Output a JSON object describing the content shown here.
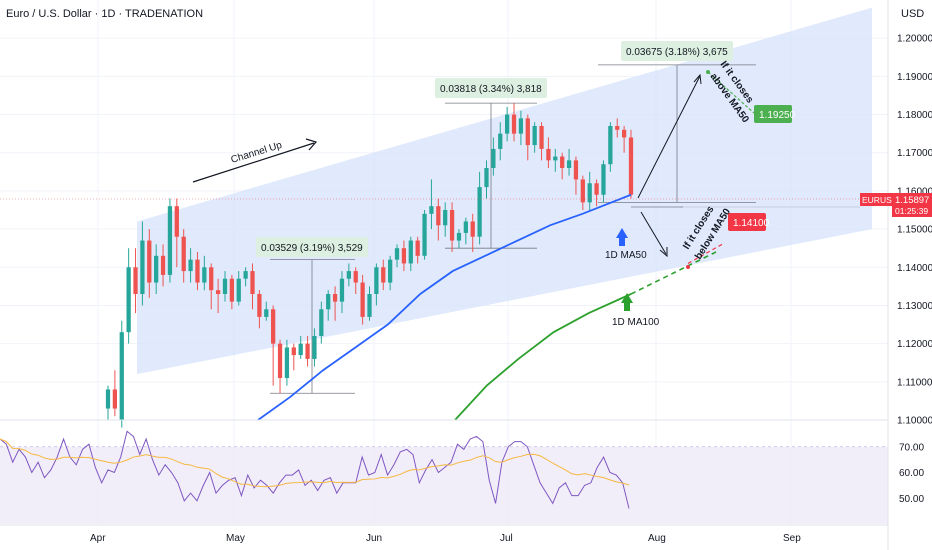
{
  "header": {
    "title": "Euro / U.S. Dollar · 1D · TRADENATION",
    "currency": "USD"
  },
  "colors": {
    "up": "#26a69a",
    "down": "#ef5350",
    "ma50": "#2962ff",
    "ma100": "#2ca02c",
    "channel": "#d6e3fb",
    "rsi": "#7e57c2",
    "rsi_ma": "#f5b841",
    "rsi_band": "#ede7f6",
    "badge_green": "#4caf50",
    "badge_red": "#f23645",
    "measure_box": "#dcefe0"
  },
  "chart_data": {
    "type": "candlestick",
    "symbol": "EURUSD",
    "price_axis": {
      "range": [
        1.1,
        1.21
      ],
      "ticks": [
        "1.20000",
        "1.19000",
        "1.18000",
        "1.17000",
        "1.16000",
        "1.15000",
        "1.14000",
        "1.13000",
        "1.12000",
        "1.11000",
        "1.10000"
      ]
    },
    "time_axis": {
      "labels": [
        "Apr",
        "May",
        "Jun",
        "Jul",
        "Aug",
        "Sep"
      ]
    },
    "last_price": {
      "label": "EURUSD",
      "value": "1.15897",
      "countdown": "01:25:39"
    },
    "candles": [
      [
        1.103,
        1.108,
        1.1,
        1.109
      ],
      [
        1.108,
        1.103,
        1.101,
        1.113
      ],
      [
        1.1,
        1.123,
        1.098,
        1.126
      ],
      [
        1.123,
        1.14,
        1.12,
        1.145
      ],
      [
        1.14,
        1.133,
        1.128,
        1.145
      ],
      [
        1.133,
        1.147,
        1.13,
        1.152
      ],
      [
        1.147,
        1.136,
        1.132,
        1.15
      ],
      [
        1.136,
        1.143,
        1.133,
        1.146
      ],
      [
        1.143,
        1.138,
        1.135,
        1.146
      ],
      [
        1.138,
        1.156,
        1.136,
        1.158
      ],
      [
        1.156,
        1.148,
        1.14,
        1.158
      ],
      [
        1.148,
        1.139,
        1.136,
        1.15
      ],
      [
        1.139,
        1.142,
        1.136,
        1.145
      ],
      [
        1.142,
        1.136,
        1.134,
        1.144
      ],
      [
        1.136,
        1.14,
        1.134,
        1.143
      ],
      [
        1.14,
        1.134,
        1.129,
        1.141
      ],
      [
        1.134,
        1.133,
        1.128,
        1.137
      ],
      [
        1.133,
        1.137,
        1.131,
        1.139
      ],
      [
        1.137,
        1.131,
        1.129,
        1.138
      ],
      [
        1.131,
        1.137,
        1.13,
        1.139
      ],
      [
        1.137,
        1.139,
        1.135,
        1.14
      ],
      [
        1.139,
        1.133,
        1.129,
        1.141
      ],
      [
        1.133,
        1.127,
        1.124,
        1.134
      ],
      [
        1.127,
        1.129,
        1.126,
        1.131
      ],
      [
        1.129,
        1.12,
        1.109,
        1.13
      ],
      [
        1.12,
        1.111,
        1.107,
        1.121
      ],
      [
        1.111,
        1.119,
        1.109,
        1.121
      ],
      [
        1.119,
        1.117,
        1.113,
        1.12
      ],
      [
        1.117,
        1.12,
        1.116,
        1.122
      ],
      [
        1.12,
        1.116,
        1.114,
        1.122
      ],
      [
        1.116,
        1.122,
        1.114,
        1.124
      ],
      [
        1.122,
        1.129,
        1.12,
        1.131
      ],
      [
        1.129,
        1.133,
        1.126,
        1.134
      ],
      [
        1.133,
        1.131,
        1.126,
        1.135
      ],
      [
        1.131,
        1.137,
        1.128,
        1.139
      ],
      [
        1.137,
        1.139,
        1.135,
        1.141
      ],
      [
        1.139,
        1.136,
        1.133,
        1.14
      ],
      [
        1.136,
        1.127,
        1.125,
        1.138
      ],
      [
        1.127,
        1.133,
        1.126,
        1.135
      ],
      [
        1.133,
        1.14,
        1.13,
        1.141
      ],
      [
        1.14,
        1.136,
        1.134,
        1.142
      ],
      [
        1.136,
        1.142,
        1.134,
        1.143
      ],
      [
        1.142,
        1.145,
        1.14,
        1.146
      ],
      [
        1.145,
        1.141,
        1.139,
        1.147
      ],
      [
        1.141,
        1.147,
        1.139,
        1.148
      ],
      [
        1.147,
        1.143,
        1.141,
        1.148
      ],
      [
        1.143,
        1.154,
        1.142,
        1.155
      ],
      [
        1.154,
        1.156,
        1.15,
        1.163
      ],
      [
        1.156,
        1.151,
        1.147,
        1.158
      ],
      [
        1.151,
        1.155,
        1.148,
        1.157
      ],
      [
        1.155,
        1.147,
        1.144,
        1.157
      ],
      [
        1.147,
        1.149,
        1.145,
        1.15
      ],
      [
        1.149,
        1.152,
        1.146,
        1.153
      ],
      [
        1.152,
        1.148,
        1.144,
        1.154
      ],
      [
        1.148,
        1.161,
        1.146,
        1.165
      ],
      [
        1.161,
        1.166,
        1.158,
        1.168
      ],
      [
        1.166,
        1.171,
        1.164,
        1.174
      ],
      [
        1.171,
        1.175,
        1.168,
        1.178
      ],
      [
        1.175,
        1.18,
        1.173,
        1.182
      ],
      [
        1.18,
        1.175,
        1.173,
        1.183
      ],
      [
        1.175,
        1.179,
        1.172,
        1.181
      ],
      [
        1.179,
        1.172,
        1.168,
        1.18
      ],
      [
        1.172,
        1.177,
        1.17,
        1.178
      ],
      [
        1.177,
        1.171,
        1.168,
        1.178
      ],
      [
        1.171,
        1.168,
        1.166,
        1.174
      ],
      [
        1.168,
        1.169,
        1.165,
        1.171
      ],
      [
        1.169,
        1.166,
        1.163,
        1.17
      ],
      [
        1.166,
        1.168,
        1.164,
        1.171
      ],
      [
        1.168,
        1.163,
        1.159,
        1.169
      ],
      [
        1.163,
        1.157,
        1.155,
        1.164
      ],
      [
        1.157,
        1.162,
        1.155,
        1.165
      ],
      [
        1.162,
        1.159,
        1.156,
        1.163
      ],
      [
        1.159,
        1.167,
        1.157,
        1.168
      ],
      [
        1.167,
        1.177,
        1.165,
        1.178
      ],
      [
        1.177,
        1.176,
        1.174,
        1.179
      ],
      [
        1.176,
        1.174,
        1.17,
        1.177
      ],
      [
        1.174,
        1.159,
        1.158,
        1.176
      ]
    ],
    "ma50": [
      [
        0.0,
        1.1
      ],
      [
        0.086,
        1.106
      ],
      [
        0.174,
        1.113
      ],
      [
        0.261,
        1.119
      ],
      [
        0.348,
        1.125
      ],
      [
        0.435,
        1.133
      ],
      [
        0.522,
        1.139
      ],
      [
        0.609,
        1.143
      ],
      [
        0.696,
        1.147
      ],
      [
        0.783,
        1.151
      ],
      [
        0.87,
        1.154
      ],
      [
        1.0,
        1.159
      ]
    ],
    "ma100": [
      [
        0.0,
        1.1
      ],
      [
        0.18,
        1.109
      ],
      [
        0.36,
        1.116
      ],
      [
        0.56,
        1.123
      ],
      [
        0.76,
        1.128
      ],
      [
        1.0,
        1.133
      ]
    ],
    "ma50_projection": [
      1.159,
      1.141
    ],
    "channel": {
      "upper": [
        1.152,
        1.208
      ],
      "lower": [
        1.112,
        1.15
      ]
    },
    "measures": [
      {
        "label": "0.03529 (3.19%) 3,529",
        "low": 1.107,
        "high": 1.142
      },
      {
        "label": "0.03818 (3.34%) 3,818",
        "low": 1.145,
        "high": 1.183
      },
      {
        "label": "0.03675 (3.18%) 3,675",
        "low": 1.157,
        "high": 1.193
      }
    ],
    "targets": [
      {
        "label": "1.19250",
        "value": 1.1925,
        "kind": "up"
      },
      {
        "label": "1.14100",
        "value": 1.141,
        "kind": "down"
      }
    ],
    "annotations": {
      "channel": "Channel Up",
      "ma50": "1D MA50",
      "ma100": "1D MA100",
      "above_1": "If it closes",
      "above_2": "above MA50",
      "below_1": "If it closes",
      "below_2": "below MA50"
    },
    "rsi": {
      "range": [
        40,
        80
      ],
      "ticks": [
        "70.00",
        "60.00",
        "50.00"
      ],
      "band": [
        30,
        70
      ],
      "values": [
        73,
        71,
        64,
        69,
        66,
        60,
        64,
        58,
        61,
        66,
        73,
        66,
        63,
        69,
        71,
        62,
        56,
        61,
        60,
        66,
        76,
        74,
        67,
        73,
        65,
        59,
        63,
        60,
        56,
        49,
        52,
        49,
        55,
        60,
        52,
        55,
        57,
        58,
        51,
        59,
        54,
        57,
        55,
        52,
        56,
        59,
        59,
        61,
        55,
        57,
        53,
        57,
        58,
        52,
        56,
        56,
        56,
        66,
        59,
        60,
        67,
        59,
        63,
        68,
        69,
        67,
        56,
        61,
        65,
        60,
        62,
        64,
        71,
        69,
        73,
        74,
        72,
        57,
        48,
        64,
        70,
        72,
        72,
        70,
        63,
        56,
        52,
        48,
        54,
        56,
        51,
        51,
        55,
        56,
        62,
        66,
        60,
        59,
        56,
        46
      ]
    }
  }
}
